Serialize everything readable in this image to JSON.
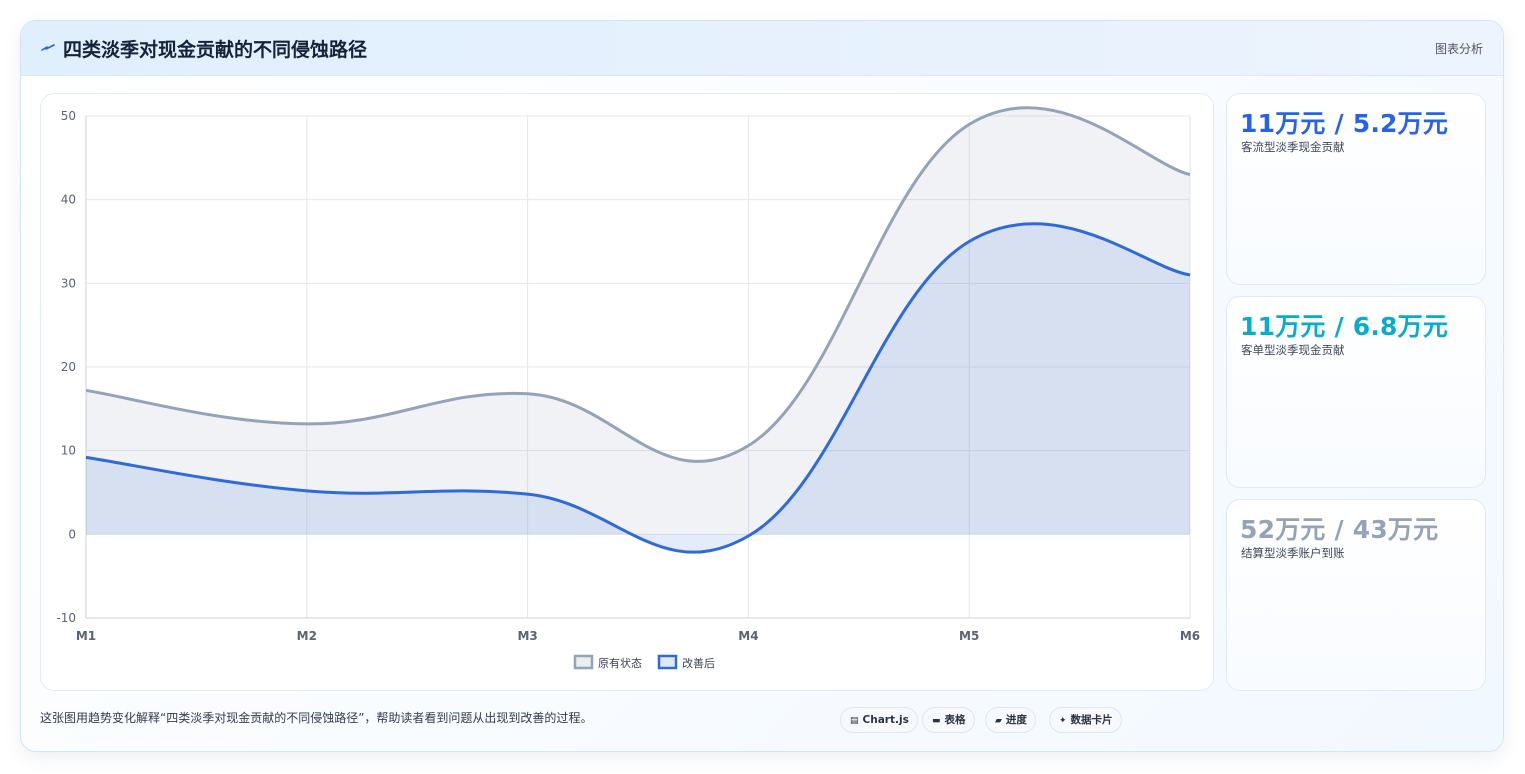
{
  "header": {
    "title": "四类淡季对现金贡献的不同侵蚀路径",
    "right_label": "图表分析"
  },
  "chart_data": {
    "type": "area",
    "x": [
      "M1",
      "M2",
      "M3",
      "M4",
      "M5",
      "M6"
    ],
    "series": [
      {
        "name": "原有状态",
        "values": [
          17.2,
          13.2,
          16.8,
          10.6,
          49,
          43
        ],
        "color": "#94a3b8"
      },
      {
        "name": "改善后",
        "values": [
          9.2,
          5.2,
          4.8,
          -0.2,
          35,
          31
        ],
        "color": "#2f6ad9"
      }
    ],
    "ylim": [
      -10,
      50
    ],
    "yticks": [
      "50",
      "40",
      "30",
      "20",
      "10",
      "0",
      "-10"
    ],
    "grid": true,
    "legend_position": "bottom"
  },
  "stats": [
    {
      "value": "11万元 / 5.2万元",
      "label": "客流型淡季现金贡献",
      "color": "#2563eb"
    },
    {
      "value": "11万元 / 6.8万元",
      "label": "客单型淡季现金贡献",
      "color": "#06aecd"
    },
    {
      "value": "52万元 / 43万元",
      "label": "结算型淡季账户到账",
      "color": "#94a3b8"
    }
  ],
  "footer": {
    "caption": "这张图用趋势变化解释“四类淡季对现金贡献的不同侵蚀路径”，帮助读者看到问题从出现到改善的过程。",
    "chips": [
      {
        "label": "Chart.js",
        "icon": "chart-icon"
      },
      {
        "label": "表格",
        "icon": "table-icon"
      },
      {
        "label": "进度",
        "icon": "progress-icon"
      },
      {
        "label": "数据卡片",
        "icon": "sparkle-icon"
      }
    ]
  }
}
